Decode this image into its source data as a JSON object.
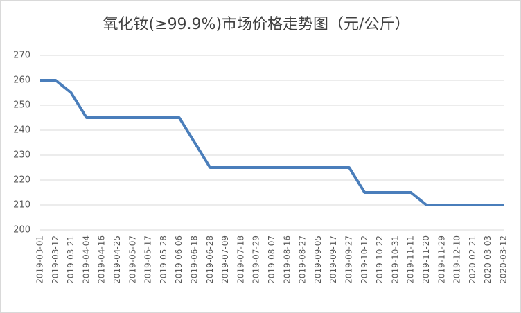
{
  "chart_data": {
    "type": "line",
    "title": "氧化钕(≥99.9%)市场价格走势图（元/公斤）",
    "categories": [
      "2019-03-01",
      "2019-03-12",
      "2019-03-21",
      "2019-04-04",
      "2019-04-16",
      "2019-04-25",
      "2019-05-07",
      "2019-05-17",
      "2019-05-28",
      "2019-06-06",
      "2019-06-18",
      "2019-06-28",
      "2019-07-09",
      "2019-07-18",
      "2019-07-29",
      "2019-08-07",
      "2019-08-16",
      "2019-08-27",
      "2019-09-05",
      "2019-09-17",
      "2019-09-27",
      "2019-10-12",
      "2019-10-22",
      "2019-10-31",
      "2019-11-11",
      "2019-11-20",
      "2019-11-29",
      "2019-12-10",
      "2020-02-21",
      "2020-03-03",
      "2020-03-12"
    ],
    "series": [
      {
        "name": "氧化钕",
        "color": "#4a7ebb",
        "values": [
          260,
          260,
          255,
          245,
          245,
          245,
          245,
          245,
          245,
          245,
          235,
          225,
          225,
          225,
          225,
          225,
          225,
          225,
          225,
          225,
          225,
          215,
          215,
          215,
          215,
          210,
          210,
          210,
          210,
          210,
          210
        ]
      }
    ],
    "ylim": [
      200,
      270
    ],
    "yticks": [
      200,
      210,
      220,
      230,
      240,
      250,
      260,
      270
    ],
    "grid": true
  }
}
